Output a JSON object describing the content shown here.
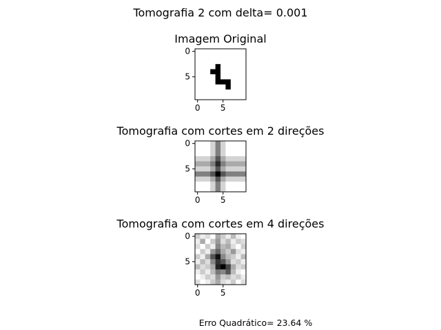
{
  "figure": {
    "suptitle": "Tomografia 2 com delta= 0.001",
    "footer": "Erro Quadrático= 23.64 %"
  },
  "chart_data": [
    {
      "type": "heatmap",
      "title": "Imagem Original",
      "colormap": "gray_r",
      "rows": 10,
      "cols": 10,
      "xticks": [
        0,
        5
      ],
      "yticks": [
        0,
        5
      ],
      "values": [
        [
          0,
          0,
          0,
          0,
          0,
          0,
          0,
          0,
          0,
          0
        ],
        [
          0,
          0,
          0,
          0,
          0,
          0,
          0,
          0,
          0,
          0
        ],
        [
          0,
          0,
          0,
          0,
          0,
          0,
          0,
          0,
          0,
          0
        ],
        [
          0,
          0,
          0,
          0,
          1,
          0,
          0,
          0,
          0,
          0
        ],
        [
          0,
          0,
          0,
          1,
          1,
          0,
          0,
          0,
          0,
          0
        ],
        [
          0,
          0,
          0,
          0,
          1,
          0,
          0,
          0,
          0,
          0
        ],
        [
          0,
          0,
          0,
          0,
          1,
          1,
          1,
          0,
          0,
          0
        ],
        [
          0,
          0,
          0,
          0,
          0,
          0,
          1,
          0,
          0,
          0
        ],
        [
          0,
          0,
          0,
          0,
          0,
          0,
          0,
          0,
          0,
          0
        ],
        [
          0,
          0,
          0,
          0,
          0,
          0,
          0,
          0,
          0,
          0
        ]
      ]
    },
    {
      "type": "heatmap",
      "title": "Tomografia com cortes em 2 direções",
      "colormap": "gray_r",
      "rows": 10,
      "cols": 10,
      "xticks": [
        0,
        5
      ],
      "yticks": [
        0,
        5
      ],
      "values": [
        [
          0.0,
          0.0,
          0.0,
          0.1,
          0.3,
          0.1,
          0.0,
          0.0,
          0.0,
          0.0
        ],
        [
          0.0,
          0.0,
          0.0,
          0.1,
          0.3,
          0.1,
          0.0,
          0.0,
          0.0,
          0.0
        ],
        [
          0.0,
          0.0,
          0.0,
          0.1,
          0.3,
          0.1,
          0.0,
          0.0,
          0.0,
          0.0
        ],
        [
          0.1,
          0.1,
          0.1,
          0.2,
          0.4,
          0.2,
          0.1,
          0.1,
          0.1,
          0.1
        ],
        [
          0.2,
          0.2,
          0.2,
          0.3,
          0.5,
          0.3,
          0.2,
          0.2,
          0.2,
          0.2
        ],
        [
          0.1,
          0.1,
          0.1,
          0.2,
          0.4,
          0.2,
          0.1,
          0.1,
          0.1,
          0.1
        ],
        [
          0.3,
          0.3,
          0.3,
          0.4,
          0.6,
          0.4,
          0.3,
          0.3,
          0.3,
          0.3
        ],
        [
          0.1,
          0.1,
          0.1,
          0.2,
          0.4,
          0.2,
          0.1,
          0.1,
          0.1,
          0.1
        ],
        [
          0.0,
          0.0,
          0.0,
          0.1,
          0.3,
          0.1,
          0.0,
          0.0,
          0.0,
          0.0
        ],
        [
          0.0,
          0.0,
          0.0,
          0.1,
          0.3,
          0.1,
          0.0,
          0.0,
          0.0,
          0.0
        ]
      ]
    },
    {
      "type": "heatmap",
      "title": "Tomografia com cortes em 4 direções",
      "colormap": "gray_r",
      "rows": 10,
      "cols": 10,
      "xticks": [
        0,
        5
      ],
      "yticks": [
        0,
        5
      ],
      "values": [
        [
          0.2,
          0.1,
          0.15,
          0.05,
          0.3,
          0.2,
          0.1,
          0.25,
          0.1,
          0.05
        ],
        [
          0.1,
          0.3,
          0.05,
          0.2,
          0.35,
          0.15,
          0.25,
          0.1,
          0.2,
          0.15
        ],
        [
          0.15,
          0.05,
          0.2,
          0.1,
          0.4,
          0.25,
          0.3,
          0.15,
          0.05,
          0.2
        ],
        [
          0.05,
          0.2,
          0.1,
          0.35,
          0.5,
          0.3,
          0.2,
          0.35,
          0.15,
          0.1
        ],
        [
          0.2,
          0.1,
          0.3,
          0.55,
          0.75,
          0.4,
          0.25,
          0.2,
          0.1,
          0.25
        ],
        [
          0.1,
          0.25,
          0.15,
          0.4,
          0.65,
          0.55,
          0.35,
          0.15,
          0.2,
          0.1
        ],
        [
          0.25,
          0.15,
          0.2,
          0.3,
          0.7,
          0.8,
          0.6,
          0.3,
          0.15,
          0.2
        ],
        [
          0.1,
          0.2,
          0.1,
          0.25,
          0.45,
          0.4,
          0.55,
          0.25,
          0.1,
          0.05
        ],
        [
          0.05,
          0.1,
          0.2,
          0.15,
          0.35,
          0.2,
          0.25,
          0.15,
          0.2,
          0.1
        ],
        [
          0.15,
          0.05,
          0.1,
          0.2,
          0.3,
          0.15,
          0.1,
          0.2,
          0.05,
          0.15
        ]
      ]
    }
  ]
}
